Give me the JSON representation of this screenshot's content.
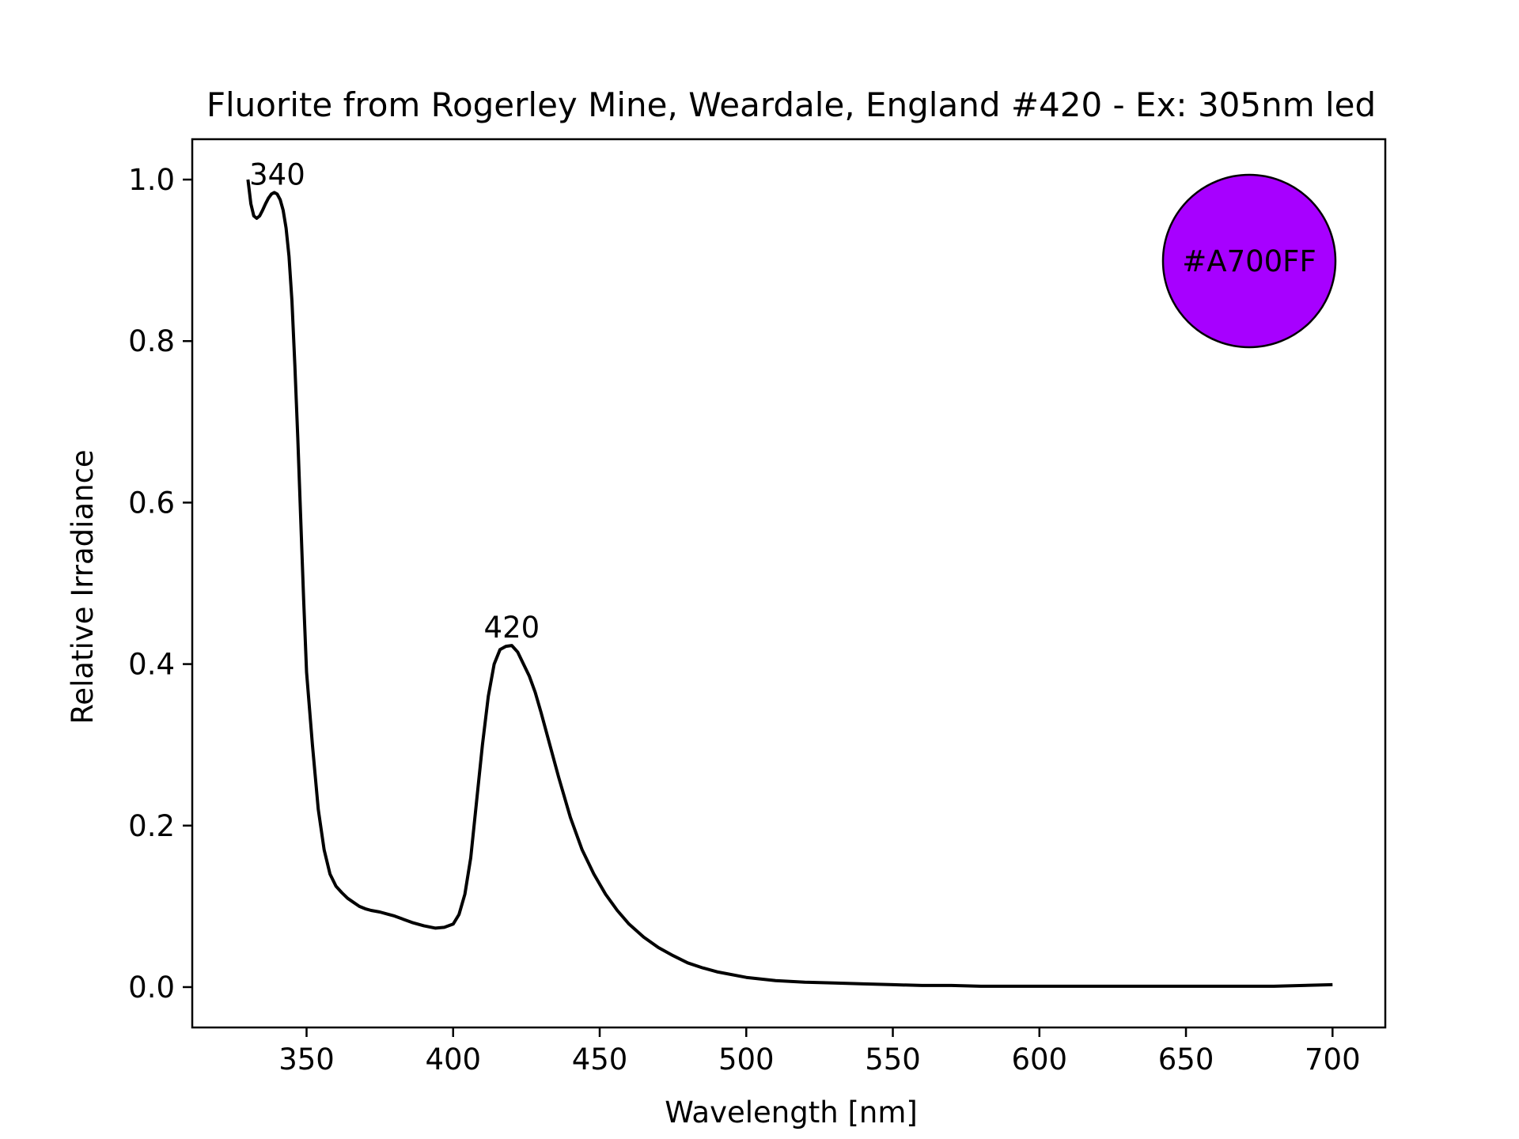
{
  "chart_data": {
    "type": "line",
    "title": "Fluorite from Rogerley Mine, Weardale, England #420 - Ex: 305nm led",
    "xlabel": "Wavelength [nm]",
    "ylabel": "Relative Irradiance",
    "xlim": [
      311,
      718
    ],
    "ylim": [
      -0.05,
      1.05
    ],
    "x_ticks": [
      350,
      400,
      450,
      500,
      550,
      600,
      650,
      700
    ],
    "x_tick_labels": [
      "350",
      "400",
      "450",
      "500",
      "550",
      "600",
      "650",
      "700"
    ],
    "y_ticks": [
      0.0,
      0.2,
      0.4,
      0.6,
      0.8,
      1.0
    ],
    "y_tick_labels": [
      "0.0",
      "0.2",
      "0.4",
      "0.6",
      "0.8",
      "1.0"
    ],
    "grid": false,
    "line_color": "#000000",
    "series": [
      {
        "x": [
          330,
          331,
          332,
          333,
          334,
          335,
          336,
          337,
          338,
          339,
          340,
          341,
          342,
          343,
          344,
          345,
          346,
          347,
          348,
          349,
          350,
          352,
          354,
          356,
          358,
          360,
          362,
          364,
          366,
          368,
          370,
          372,
          375,
          378,
          380,
          383,
          386,
          390,
          394,
          397,
          400,
          402,
          404,
          406,
          408,
          410,
          412,
          414,
          416,
          418,
          420,
          422,
          424,
          426,
          428,
          430,
          433,
          436,
          440,
          444,
          448,
          452,
          456,
          460,
          465,
          470,
          475,
          480,
          485,
          490,
          500,
          510,
          520,
          530,
          540,
          550,
          560,
          570,
          580,
          590,
          600,
          620,
          640,
          660,
          680,
          690,
          700
        ],
        "y": [
          1.0,
          0.97,
          0.955,
          0.952,
          0.955,
          0.962,
          0.97,
          0.977,
          0.982,
          0.984,
          0.982,
          0.975,
          0.962,
          0.94,
          0.905,
          0.85,
          0.77,
          0.68,
          0.58,
          0.48,
          0.39,
          0.3,
          0.22,
          0.17,
          0.14,
          0.125,
          0.117,
          0.11,
          0.105,
          0.1,
          0.097,
          0.095,
          0.093,
          0.09,
          0.088,
          0.084,
          0.08,
          0.076,
          0.073,
          0.074,
          0.078,
          0.09,
          0.115,
          0.16,
          0.23,
          0.3,
          0.36,
          0.4,
          0.418,
          0.422,
          0.423,
          0.415,
          0.4,
          0.385,
          0.365,
          0.34,
          0.3,
          0.26,
          0.21,
          0.17,
          0.14,
          0.115,
          0.095,
          0.078,
          0.062,
          0.049,
          0.039,
          0.03,
          0.024,
          0.019,
          0.012,
          0.008,
          0.006,
          0.005,
          0.004,
          0.003,
          0.002,
          0.002,
          0.001,
          0.001,
          0.001,
          0.001,
          0.001,
          0.001,
          0.001,
          0.002,
          0.003
        ]
      }
    ],
    "annotations": [
      {
        "text": "340",
        "x": 340,
        "y": 0.984
      },
      {
        "text": "420",
        "x": 420,
        "y": 0.423
      }
    ],
    "color_swatch": {
      "label": "#A700FF",
      "color": "#A700FF",
      "position": "top-right"
    }
  }
}
